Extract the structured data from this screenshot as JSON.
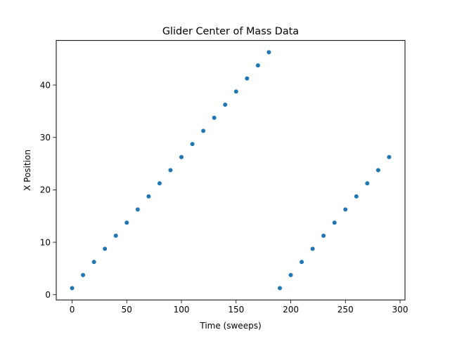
{
  "chart_data": {
    "type": "scatter",
    "title": "Glider Center of Mass Data",
    "xlabel": "Time (sweeps)",
    "ylabel": "X Position",
    "xlim": [
      -14.5,
      304.5
    ],
    "ylim": [
      -1.0,
      48.5
    ],
    "xticks": [
      0,
      50,
      100,
      150,
      200,
      250,
      300
    ],
    "yticks": [
      0,
      10,
      20,
      30,
      40
    ],
    "grid": false,
    "legend": "none",
    "series": [
      {
        "color": "#1f77b4",
        "marker": "circle",
        "points": [
          {
            "x": 0,
            "y": 1.25
          },
          {
            "x": 10,
            "y": 3.75
          },
          {
            "x": 20,
            "y": 6.25
          },
          {
            "x": 30,
            "y": 8.75
          },
          {
            "x": 40,
            "y": 11.25
          },
          {
            "x": 50,
            "y": 13.75
          },
          {
            "x": 60,
            "y": 16.25
          },
          {
            "x": 70,
            "y": 18.75
          },
          {
            "x": 80,
            "y": 21.25
          },
          {
            "x": 90,
            "y": 23.75
          },
          {
            "x": 100,
            "y": 26.25
          },
          {
            "x": 110,
            "y": 28.75
          },
          {
            "x": 120,
            "y": 31.25
          },
          {
            "x": 130,
            "y": 33.75
          },
          {
            "x": 140,
            "y": 36.25
          },
          {
            "x": 150,
            "y": 38.75
          },
          {
            "x": 160,
            "y": 41.25
          },
          {
            "x": 170,
            "y": 43.75
          },
          {
            "x": 180,
            "y": 46.25
          },
          {
            "x": 190,
            "y": 1.25
          },
          {
            "x": 200,
            "y": 3.75
          },
          {
            "x": 210,
            "y": 6.25
          },
          {
            "x": 220,
            "y": 8.75
          },
          {
            "x": 230,
            "y": 11.25
          },
          {
            "x": 240,
            "y": 13.75
          },
          {
            "x": 250,
            "y": 16.25
          },
          {
            "x": 260,
            "y": 18.75
          },
          {
            "x": 270,
            "y": 21.25
          },
          {
            "x": 280,
            "y": 23.75
          },
          {
            "x": 290,
            "y": 26.25
          }
        ]
      }
    ]
  }
}
